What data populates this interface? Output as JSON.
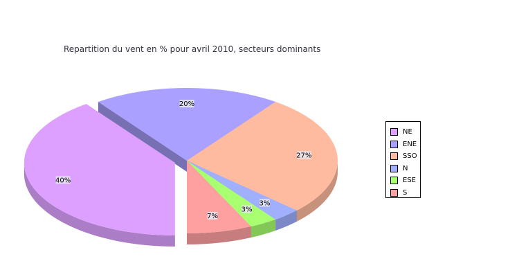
{
  "chart_data": {
    "type": "pie",
    "title": "Repartition du vent en % pour avril 2010, secteurs dominants",
    "categories": [
      "NE",
      "ENE",
      "SSO",
      "N",
      "ESE",
      "S"
    ],
    "values": [
      40,
      20,
      27,
      3,
      3,
      7
    ],
    "labels": [
      "40%",
      "20%",
      "27%",
      "3%",
      "3%",
      "7%"
    ],
    "colors": [
      "#dda0ff",
      "#aaa0ff",
      "#ffbb9f",
      "#a0b0ff",
      "#a8ff70",
      "#ffa0a0"
    ],
    "exploded": [
      "NE"
    ],
    "style": "3d",
    "legend_position": "right"
  }
}
